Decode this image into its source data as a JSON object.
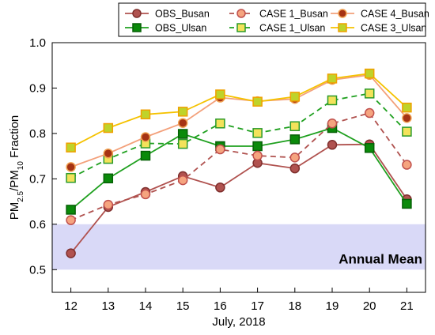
{
  "chart_data": {
    "type": "line",
    "x": [
      12,
      13,
      14,
      15,
      16,
      17,
      18,
      19,
      20,
      21
    ],
    "xlabel": "July, 2018",
    "ylabel_main": "PM2.5/PM10 Fraction",
    "ylabel_parts": {
      "pm": "PM",
      "sub1": "2.5",
      "slash": "/PM",
      "sub2": "10",
      "rest": " Fraction"
    },
    "xlim": [
      11.5,
      21.5
    ],
    "ylim": [
      0.45,
      1.0
    ],
    "yticks": [
      "0.5",
      "0.6",
      "0.7",
      "0.8",
      "0.9",
      "1.0"
    ],
    "ytick_values": [
      0.5,
      0.6,
      0.7,
      0.8,
      0.9,
      1.0
    ],
    "xticks": [
      "12",
      "13",
      "14",
      "15",
      "16",
      "17",
      "18",
      "19",
      "20",
      "21"
    ],
    "grid": false,
    "legend_position": "top-right",
    "band": {
      "from": 0.5,
      "to": 0.6,
      "label": "Annual Mean",
      "color": "#d9d9f7"
    },
    "series": [
      {
        "name": "OBS_Busan",
        "values": [
          0.536,
          0.638,
          0.671,
          0.706,
          0.681,
          0.735,
          0.723,
          0.775,
          0.776,
          0.655
        ],
        "line_color": "#b0524f",
        "marker": "circle",
        "marker_fill": "#b0524f",
        "marker_stroke": "#7f2f2d",
        "dash": "solid"
      },
      {
        "name": "OBS_Ulsan",
        "values": [
          0.632,
          0.701,
          0.751,
          0.799,
          0.772,
          0.772,
          0.787,
          0.812,
          0.768,
          0.645
        ],
        "line_color": "#1fa01f",
        "marker": "square",
        "marker_fill": "#0a8a0a",
        "marker_stroke": "#066006",
        "dash": "solid"
      },
      {
        "name": "CASE 1_Busan",
        "values": [
          0.609,
          0.643,
          0.666,
          0.697,
          0.765,
          0.751,
          0.747,
          0.822,
          0.845,
          0.731
        ],
        "line_color": "#b0524f",
        "marker": "circle",
        "marker_fill": "#f5a47f",
        "marker_stroke": "#c0504d",
        "dash": "dashed"
      },
      {
        "name": "CASE 1_Ulsan",
        "values": [
          0.702,
          0.744,
          0.778,
          0.777,
          0.822,
          0.801,
          0.816,
          0.873,
          0.888,
          0.804
        ],
        "line_color": "#1fa01f",
        "marker": "square",
        "marker_fill": "#f3e25a",
        "marker_stroke": "#2a9a2a",
        "dash": "dashed"
      },
      {
        "name": "CASE 4_Busan",
        "values": [
          0.726,
          0.756,
          0.792,
          0.823,
          0.879,
          0.871,
          0.876,
          0.918,
          0.929,
          0.834
        ],
        "line_color": "#f3a07a",
        "marker": "circle",
        "marker_fill": "#a63314",
        "marker_stroke": "#f0a050",
        "dash": "solid"
      },
      {
        "name": "CASE 3_Ulsan",
        "values": [
          0.769,
          0.812,
          0.842,
          0.848,
          0.886,
          0.87,
          0.881,
          0.921,
          0.932,
          0.857
        ],
        "line_color": "#f5c200",
        "marker": "square",
        "marker_fill": "#bfd32a",
        "marker_stroke": "#f0a000",
        "dash": "solid"
      }
    ],
    "legend_order": [
      0,
      2,
      4,
      1,
      3,
      5
    ]
  }
}
